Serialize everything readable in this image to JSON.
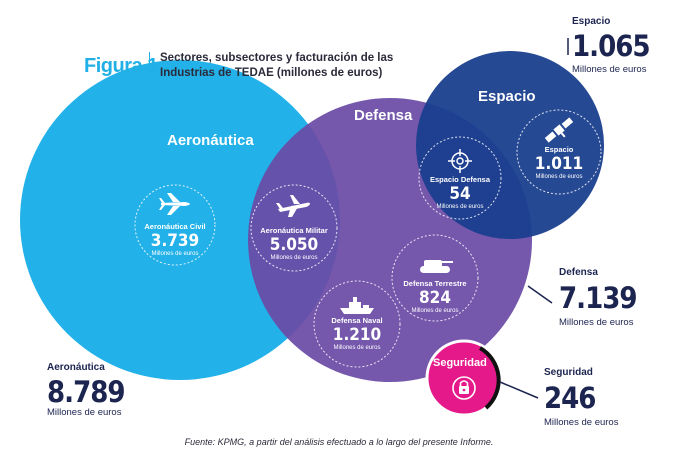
{
  "figure": {
    "label": "Figura 1",
    "title": "Sectores, subsectores y facturación de las Industrias de TEDAE (millones de euros)"
  },
  "sectors": {
    "aeronautica": {
      "name": "Aeronáutica",
      "value": "8.789",
      "units": "Millones de euros",
      "color": "#22b1e8"
    },
    "defensa": {
      "name": "Defensa",
      "value": "7.139",
      "units": "Millones de euros",
      "color": "#6a4aa6"
    },
    "espacio": {
      "name": "Espacio",
      "value": "1.065",
      "units": "Millones de euros",
      "color": "#1a3f8e"
    },
    "seguridad": {
      "name": "Seguridad",
      "value": "246",
      "units": "Millones de euros",
      "color": "#e6198a"
    }
  },
  "subsectors": {
    "aeronautica_civil": {
      "name": "Aeronáutica Civil",
      "value": "3.739",
      "units": "Millones de euros",
      "icon": "airplane-icon"
    },
    "aeronautica_militar": {
      "name": "Aeronáutica Militar",
      "value": "5.050",
      "units": "Millones de euros",
      "icon": "fighter-jet-icon"
    },
    "espacio_defensa": {
      "name": "Espacio Defensa",
      "value": "54",
      "units": "Millones de euros",
      "icon": "crosshair-icon"
    },
    "espacio": {
      "name": "Espacio",
      "value": "1.011",
      "units": "Millones de euros",
      "icon": "satellite-icon"
    },
    "defensa_terrestre": {
      "name": "Defensa Terrestre",
      "value": "824",
      "units": "Millones de euros",
      "icon": "tank-icon"
    },
    "defensa_naval": {
      "name": "Defensa Naval",
      "value": "1.210",
      "units": "Millones de euros",
      "icon": "ship-icon"
    },
    "seguridad": {
      "name": "Seguridad",
      "icon": "lock-icon"
    }
  },
  "source": "Fuente: KPMG, a partir del análisis efectuado a lo largo del presente Informe."
}
